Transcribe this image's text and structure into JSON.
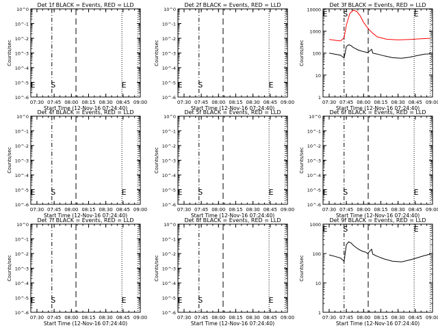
{
  "figure": {
    "shared_x_title": "Start Time (12-Nov-16 07:24:40)",
    "y_title": "Counts/sec",
    "x_ticks": [
      "07:30",
      "07:45",
      "08:00",
      "08:15",
      "08:30",
      "08:45",
      "09:00"
    ]
  },
  "chart_data": [
    {
      "type": "line",
      "title": "Det 1f BLACK = Events, RED = LLD",
      "xlabel": "Start Time (12-Nov-16 07:24:40)",
      "ylabel": "Counts/sec",
      "y_scale": "log",
      "y_ticks": [
        "10^0",
        "10^-1",
        "10^-2",
        "10^-3",
        "10^-4",
        "10^-5",
        "10^-6"
      ],
      "x_range": [
        "07:24:40",
        "09:00"
      ],
      "markers": {
        "S": "07:43",
        "E": "08:44",
        "dashed_at": "08:04",
        "dotted_end": "08:58"
      },
      "series": []
    },
    {
      "type": "line",
      "title": "Det 2f BLACK = Events, RED = LLD",
      "xlabel": "Start Time (12-Nov-16 07:24:40)",
      "ylabel": "Counts/sec",
      "y_scale": "log",
      "y_ticks": [
        "10^0",
        "10^-1",
        "10^-2",
        "10^-3",
        "10^-4",
        "10^-5",
        "10^-6"
      ],
      "x_range": [
        "07:24:40",
        "09:00"
      ],
      "markers": {
        "S": "07:43",
        "E": "08:44",
        "dashed_at": "08:04",
        "dotted_end": "08:58"
      },
      "series": []
    },
    {
      "type": "line",
      "title": "Det 3f BLACK = Events, RED = LLD",
      "xlabel": "Start Time (12-Nov-16 07:24:40)",
      "ylabel": "Counts/sec",
      "y_scale": "log",
      "y_ticks": [
        "1",
        "10",
        "100",
        "1000",
        "10000"
      ],
      "x_range": [
        "07:24:40",
        "09:00"
      ],
      "markers": {
        "S": "07:43",
        "E": "08:44",
        "dashed_at": "08:04",
        "dotted_end": "08:58"
      },
      "series": [
        {
          "color": "#ff0000",
          "points": [
            [
              "07:30",
              420
            ],
            [
              "07:36",
              380
            ],
            [
              "07:40",
              360
            ],
            [
              "07:43",
              500
            ],
            [
              "07:45",
              1900
            ],
            [
              "07:48",
              6500
            ],
            [
              "07:51",
              9000
            ],
            [
              "07:54",
              8000
            ],
            [
              "07:57",
              5000
            ],
            [
              "08:00",
              2500
            ],
            [
              "08:04",
              1300
            ],
            [
              "08:08",
              800
            ],
            [
              "08:12",
              550
            ],
            [
              "08:20",
              430
            ],
            [
              "08:30",
              400
            ],
            [
              "08:40",
              420
            ],
            [
              "08:50",
              450
            ],
            [
              "08:58",
              470
            ]
          ]
        },
        {
          "color": "#000000",
          "points": [
            [
              "07:30",
              100
            ],
            [
              "07:35",
              90
            ],
            [
              "07:40",
              80
            ],
            [
              "07:43",
              60
            ],
            [
              "07:43.5",
              80
            ],
            [
              "07:45",
              200
            ],
            [
              "07:47",
              240
            ],
            [
              "07:49",
              220
            ],
            [
              "07:51",
              180
            ],
            [
              "07:53",
              160
            ],
            [
              "07:55",
              140
            ],
            [
              "07:57",
              130
            ],
            [
              "07:59",
              120
            ],
            [
              "08:02",
              110
            ],
            [
              "08:03.5",
              105
            ],
            [
              "08:07",
              150
            ],
            [
              "08:08",
              100
            ],
            [
              "08:12",
              90
            ],
            [
              "08:18",
              75
            ],
            [
              "08:25",
              62
            ],
            [
              "08:33",
              58
            ],
            [
              "08:40",
              65
            ],
            [
              "08:47",
              78
            ],
            [
              "08:53",
              90
            ],
            [
              "08:58",
              92
            ]
          ]
        }
      ]
    },
    {
      "type": "line",
      "title": "Det 4f BLACK = Events, RED = LLD",
      "xlabel": "Start Time (12-Nov-16 07:24:40)",
      "ylabel": "Counts/sec",
      "y_scale": "log",
      "y_ticks": [
        "10^0",
        "10^-1",
        "10^-2",
        "10^-3",
        "10^-4",
        "10^-5",
        "10^-6"
      ],
      "x_range": [
        "07:24:40",
        "09:00"
      ],
      "markers": {
        "S": "07:43",
        "E": "08:44",
        "dashed_at": "08:04",
        "dotted_end": "08:58"
      },
      "series": []
    },
    {
      "type": "line",
      "title": "Det 5f BLACK = Events, RED = LLD",
      "xlabel": "Start Time (12-Nov-16 07:24:40)",
      "ylabel": "Counts/sec",
      "y_scale": "log",
      "y_ticks": [
        "10^0",
        "10^-1",
        "10^-2",
        "10^-3",
        "10^-4",
        "10^-5",
        "10^-6"
      ],
      "x_range": [
        "07:24:40",
        "09:00"
      ],
      "markers": {
        "S": "07:43",
        "E": "08:44",
        "dashed_at": "08:04",
        "dotted_end": "08:58"
      },
      "series": []
    },
    {
      "type": "line",
      "title": "Det 6f BLACK = Events, RED = LLD",
      "xlabel": "Start Time (12-Nov-16 07:24:40)",
      "ylabel": "Counts/sec",
      "y_scale": "log",
      "y_ticks": [
        "10^0",
        "10^-1",
        "10^-2",
        "10^-3",
        "10^-4",
        "10^-5",
        "10^-6"
      ],
      "x_range": [
        "07:24:40",
        "09:00"
      ],
      "markers": {
        "S": "07:43",
        "E": "08:44",
        "dashed_at": "08:04",
        "dotted_end": "08:58"
      },
      "series": []
    },
    {
      "type": "line",
      "title": "Det 7f BLACK = Events, RED = LLD",
      "xlabel": "Start Time (12-Nov-16 07:24:40)",
      "ylabel": "Counts/sec",
      "y_scale": "log",
      "y_ticks": [
        "10^0",
        "10^-1",
        "10^-2",
        "10^-3",
        "10^-4",
        "10^-5",
        "10^-6"
      ],
      "x_range": [
        "07:24:40",
        "09:00"
      ],
      "markers": {
        "S": "07:43",
        "E": "08:44",
        "dashed_at": "08:04",
        "dotted_end": "08:58"
      },
      "series": []
    },
    {
      "type": "line",
      "title": "Det 8f BLACK = Events, RED = LLD",
      "xlabel": "Start Time (12-Nov-16 07:24:40)",
      "ylabel": "Counts/sec",
      "y_scale": "log",
      "y_ticks": [
        "10^0",
        "10^-1",
        "10^-2",
        "10^-3",
        "10^-4",
        "10^-5",
        "10^-6"
      ],
      "x_range": [
        "07:24:40",
        "09:00"
      ],
      "markers": {
        "S": "07:43",
        "E": "08:44",
        "dashed_at": "08:04",
        "dotted_end": "08:58"
      },
      "series": []
    },
    {
      "type": "line",
      "title": "Det 9f BLACK = Events, RED = LLD",
      "xlabel": "Start Time (12-Nov-16 07:24:40)",
      "ylabel": "Counts/sec",
      "y_scale": "log",
      "y_ticks": [
        "1",
        "10",
        "100",
        "1000"
      ],
      "x_range": [
        "07:24:40",
        "09:00"
      ],
      "markers": {
        "S": "07:43",
        "E": "08:44",
        "dashed_at": "08:04",
        "dotted_end": "08:58"
      },
      "series": [
        {
          "color": "#000000",
          "points": [
            [
              "07:30",
              90
            ],
            [
              "07:35",
              80
            ],
            [
              "07:40",
              70
            ],
            [
              "07:43",
              55
            ],
            [
              "07:43.5",
              75
            ],
            [
              "07:45",
              200
            ],
            [
              "07:47",
              250
            ],
            [
              "07:49",
              230
            ],
            [
              "07:51",
              190
            ],
            [
              "07:53",
              165
            ],
            [
              "07:55",
              145
            ],
            [
              "07:57",
              130
            ],
            [
              "07:59",
              120
            ],
            [
              "08:02",
              110
            ],
            [
              "08:03.5",
              100
            ],
            [
              "08:07",
              140
            ],
            [
              "08:08",
              95
            ],
            [
              "08:12",
              80
            ],
            [
              "08:18",
              65
            ],
            [
              "08:25",
              55
            ],
            [
              "08:33",
              52
            ],
            [
              "08:40",
              60
            ],
            [
              "08:47",
              72
            ],
            [
              "08:53",
              85
            ],
            [
              "08:58",
              95
            ]
          ]
        }
      ]
    }
  ]
}
